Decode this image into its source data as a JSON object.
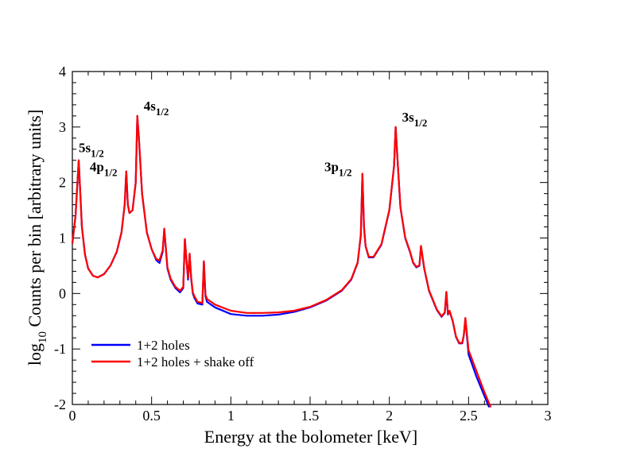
{
  "chart_data": {
    "type": "line",
    "title": "",
    "xlabel": "Energy at the bolometer [keV]",
    "ylabel": {
      "prefix": "log",
      "sub": "10",
      "suffix": " Counts per bin [arbitrary units]"
    },
    "xlim": [
      0,
      3
    ],
    "ylim": [
      -2,
      4
    ],
    "xticks": [
      0,
      0.5,
      1,
      1.5,
      2,
      2.5,
      3
    ],
    "xtick_labels": [
      "0",
      "0.5",
      "1",
      "1.5",
      "2",
      "2.5",
      "3"
    ],
    "yticks": [
      -2,
      -1,
      0,
      1,
      2,
      3,
      4
    ],
    "ytick_labels": [
      "-2",
      "-1",
      "0",
      "1",
      "2",
      "3",
      "4"
    ],
    "grid": false,
    "legend_position": "bottom-left",
    "annotations": [
      {
        "main": "5s",
        "sub": "1/2",
        "x": 0.04,
        "y": 2.55
      },
      {
        "main": "4p",
        "sub": "1/2",
        "x": 0.11,
        "y": 2.2
      },
      {
        "main": "4s",
        "sub": "1/2",
        "x": 0.45,
        "y": 3.3
      },
      {
        "main": "3p",
        "sub": "1/2",
        "x": 1.59,
        "y": 2.2
      },
      {
        "main": "3s",
        "sub": "1/2",
        "x": 2.08,
        "y": 3.1
      }
    ],
    "series": [
      {
        "name": "1+2 holes",
        "color": "#0000ff",
        "x": [
          0.0,
          0.02,
          0.04,
          0.05,
          0.06,
          0.08,
          0.1,
          0.13,
          0.16,
          0.2,
          0.24,
          0.28,
          0.31,
          0.33,
          0.34,
          0.35,
          0.36,
          0.38,
          0.4,
          0.41,
          0.42,
          0.44,
          0.47,
          0.5,
          0.53,
          0.55,
          0.57,
          0.58,
          0.6,
          0.62,
          0.65,
          0.68,
          0.7,
          0.71,
          0.72,
          0.73,
          0.74,
          0.75,
          0.76,
          0.77,
          0.79,
          0.82,
          0.83,
          0.84,
          0.85,
          0.9,
          1.0,
          1.1,
          1.2,
          1.3,
          1.4,
          1.5,
          1.6,
          1.7,
          1.76,
          1.8,
          1.82,
          1.83,
          1.84,
          1.85,
          1.87,
          1.9,
          1.95,
          2.0,
          2.03,
          2.04,
          2.05,
          2.07,
          2.1,
          2.13,
          2.15,
          2.17,
          2.19,
          2.2,
          2.22,
          2.25,
          2.3,
          2.33,
          2.35,
          2.36,
          2.37,
          2.38,
          2.4,
          2.42,
          2.44,
          2.46,
          2.47,
          2.48,
          2.5,
          2.55,
          2.6,
          2.63
        ],
        "y": [
          0.9,
          1.4,
          2.4,
          1.8,
          1.2,
          0.7,
          0.45,
          0.32,
          0.29,
          0.35,
          0.5,
          0.75,
          1.1,
          1.6,
          2.2,
          1.6,
          1.45,
          1.5,
          2.0,
          3.2,
          2.8,
          1.8,
          1.1,
          0.8,
          0.6,
          0.55,
          0.75,
          1.15,
          0.45,
          0.25,
          0.1,
          0.02,
          0.1,
          0.98,
          0.6,
          0.25,
          0.7,
          0.25,
          0.0,
          -0.08,
          -0.18,
          -0.2,
          0.58,
          -0.05,
          -0.15,
          -0.25,
          -0.37,
          -0.4,
          -0.4,
          -0.38,
          -0.33,
          -0.25,
          -0.13,
          0.05,
          0.25,
          0.55,
          1.05,
          2.15,
          1.2,
          0.85,
          0.65,
          0.65,
          0.88,
          1.5,
          2.3,
          3.0,
          2.5,
          1.55,
          1.0,
          0.75,
          0.55,
          0.47,
          0.5,
          0.85,
          0.45,
          0.05,
          -0.3,
          -0.42,
          -0.35,
          0.02,
          -0.38,
          -0.32,
          -0.5,
          -0.78,
          -0.9,
          -0.9,
          -0.75,
          -0.45,
          -1.1,
          -1.5,
          -1.85,
          -2.05
        ]
      },
      {
        "name": "1+2 holes + shake off",
        "color": "#ff0000",
        "x": [
          0.0,
          0.02,
          0.04,
          0.05,
          0.06,
          0.08,
          0.1,
          0.13,
          0.16,
          0.2,
          0.24,
          0.28,
          0.31,
          0.33,
          0.34,
          0.35,
          0.36,
          0.38,
          0.4,
          0.41,
          0.42,
          0.44,
          0.47,
          0.5,
          0.53,
          0.55,
          0.57,
          0.58,
          0.6,
          0.62,
          0.65,
          0.68,
          0.7,
          0.71,
          0.72,
          0.73,
          0.74,
          0.75,
          0.76,
          0.77,
          0.79,
          0.82,
          0.83,
          0.84,
          0.85,
          0.9,
          1.0,
          1.1,
          1.2,
          1.3,
          1.4,
          1.5,
          1.6,
          1.7,
          1.76,
          1.8,
          1.82,
          1.83,
          1.84,
          1.85,
          1.87,
          1.9,
          1.95,
          2.0,
          2.03,
          2.04,
          2.05,
          2.07,
          2.1,
          2.13,
          2.15,
          2.17,
          2.19,
          2.2,
          2.22,
          2.25,
          2.3,
          2.33,
          2.35,
          2.36,
          2.37,
          2.38,
          2.4,
          2.42,
          2.44,
          2.46,
          2.47,
          2.48,
          2.5,
          2.55,
          2.6,
          2.64
        ],
        "y": [
          0.9,
          1.4,
          2.4,
          1.8,
          1.2,
          0.7,
          0.45,
          0.32,
          0.29,
          0.35,
          0.5,
          0.75,
          1.1,
          1.6,
          2.2,
          1.6,
          1.45,
          1.5,
          2.0,
          3.2,
          2.8,
          1.8,
          1.1,
          0.8,
          0.62,
          0.6,
          0.78,
          1.17,
          0.47,
          0.27,
          0.12,
          0.05,
          0.12,
          0.98,
          0.62,
          0.28,
          0.72,
          0.28,
          0.02,
          -0.05,
          -0.15,
          -0.17,
          0.58,
          -0.02,
          -0.1,
          -0.2,
          -0.31,
          -0.35,
          -0.35,
          -0.34,
          -0.31,
          -0.24,
          -0.12,
          0.06,
          0.26,
          0.56,
          1.06,
          2.16,
          1.2,
          0.86,
          0.66,
          0.66,
          0.89,
          1.51,
          2.3,
          3.0,
          2.5,
          1.56,
          1.01,
          0.76,
          0.56,
          0.48,
          0.51,
          0.86,
          0.46,
          0.06,
          -0.29,
          -0.41,
          -0.34,
          0.03,
          -0.37,
          -0.31,
          -0.49,
          -0.77,
          -0.89,
          -0.89,
          -0.74,
          -0.44,
          -1.02,
          -1.4,
          -1.78,
          -2.05
        ]
      }
    ]
  }
}
